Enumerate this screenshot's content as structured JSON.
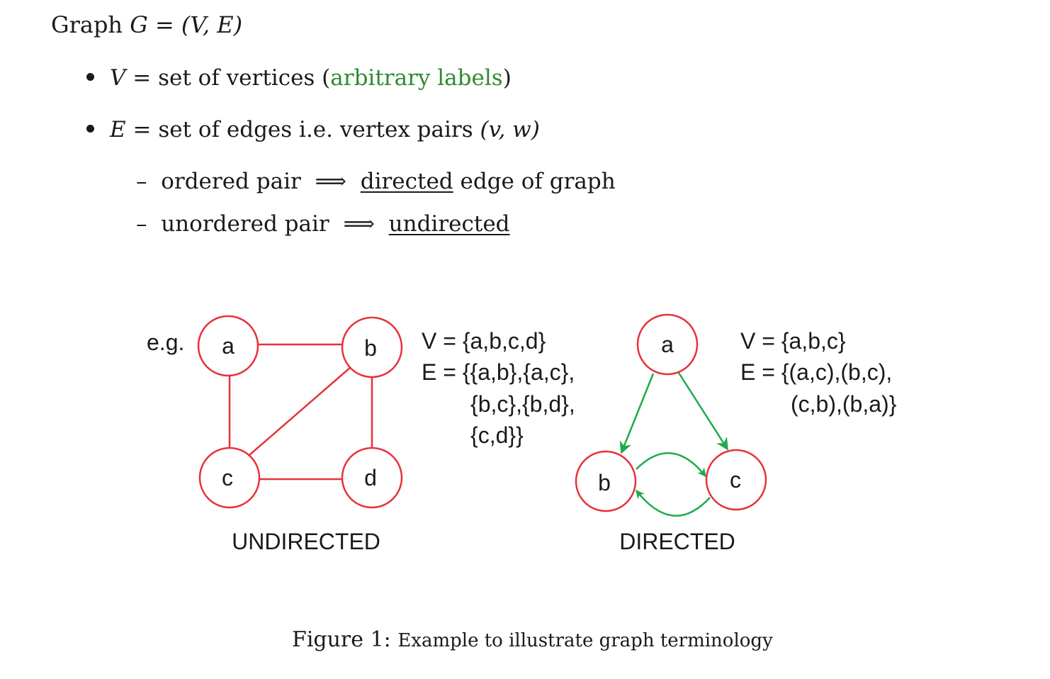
{
  "heading": {
    "prefix": "Graph",
    "lhs": "G",
    "eq": "=",
    "rhs": "(V, E)"
  },
  "bullets": [
    {
      "var": "V",
      "eq": "=",
      "text": "set of vertices (",
      "highlight": "arbitrary labels",
      "close": ")"
    },
    {
      "var": "E",
      "eq": "=",
      "text": "set of edges i.e. vertex pairs",
      "math": "(v, w)"
    }
  ],
  "sub_items": [
    {
      "dash": "–",
      "text": "ordered pair",
      "arrow": "⟹",
      "underlined": "directed",
      "rest": "edge of graph"
    },
    {
      "dash": "–",
      "text": "unordered pair",
      "arrow": "⟹",
      "underlined": "undirected",
      "rest": ""
    }
  ],
  "undirected": {
    "eg_label": "e.g.",
    "nodes": [
      "a",
      "b",
      "c",
      "d"
    ],
    "edges": [
      [
        "a",
        "b"
      ],
      [
        "a",
        "c"
      ],
      [
        "b",
        "c"
      ],
      [
        "b",
        "d"
      ],
      [
        "c",
        "d"
      ]
    ],
    "sets": [
      "V = {a,b,c,d}",
      "E = {{a,b},{a,c},",
      "{b,c},{b,d},",
      "{c,d}}"
    ],
    "label": "UNDIRECTED"
  },
  "directed": {
    "nodes": [
      "a",
      "b",
      "c"
    ],
    "edges": [
      [
        "a",
        "c"
      ],
      [
        "b",
        "c"
      ],
      [
        "c",
        "b"
      ],
      [
        "b",
        "a"
      ]
    ],
    "sets": [
      "V = {a,b,c}",
      "E = {(a,c),(b,c),",
      "(c,b),(b,a)}"
    ],
    "label": "DIRECTED"
  },
  "caption": {
    "label": "Figure 1:",
    "text": "Example to illustrate graph terminology"
  },
  "colors": {
    "node": "#e8313a",
    "edge_undirected": "#e8313a",
    "edge_directed": "#1faa4b",
    "highlight": "#2e8b2e"
  }
}
